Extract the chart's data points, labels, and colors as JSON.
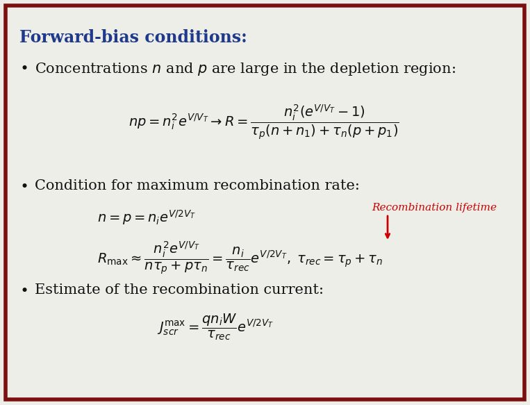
{
  "title": "Forward-bias conditions:",
  "title_color": "#1F3A8A",
  "background_color": "#EEEEE8",
  "border_color": "#7B1010",
  "border_linewidth": 4,
  "text_color": "#111111",
  "annotation_color": "#CC0000",
  "annotation": "Recombination lifetime"
}
